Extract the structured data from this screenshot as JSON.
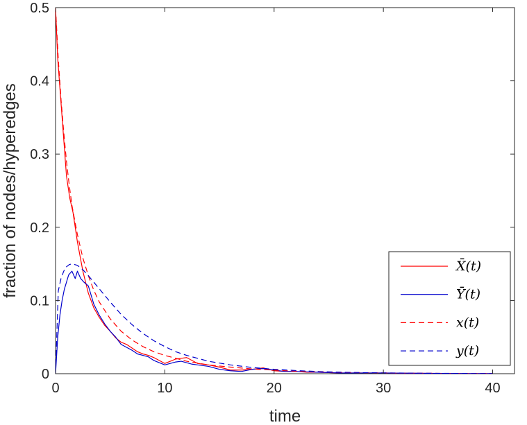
{
  "chart_data": {
    "type": "line",
    "xlabel": "time",
    "ylabel": "fraction of nodes/hyperedges",
    "xlim": [
      0,
      42
    ],
    "ylim": [
      0,
      0.5
    ],
    "xticks": [
      0,
      10,
      20,
      30,
      40
    ],
    "yticks": [
      0,
      0.1,
      0.2,
      0.3,
      0.4,
      0.5
    ],
    "xtick_labels": [
      "0",
      "10",
      "20",
      "30",
      "40"
    ],
    "ytick_labels": [
      "0",
      "0.1",
      "0.2",
      "0.3",
      "0.4",
      "0.5"
    ],
    "grid": false,
    "legend_position": "bottom-right",
    "series": [
      {
        "name": "X̄(t)",
        "color": "#ff0000",
        "style": "solid",
        "x": [
          0,
          0.2,
          0.5,
          0.8,
          1,
          1.3,
          1.6,
          2,
          2.5,
          3,
          3.5,
          4,
          4.5,
          5,
          5.5,
          6,
          6.5,
          7,
          7.5,
          8,
          8.5,
          9,
          9.5,
          10,
          10.5,
          11,
          11.5,
          12,
          13,
          14,
          15,
          16,
          17,
          18,
          19,
          20,
          21,
          22,
          23,
          24,
          26,
          28,
          30,
          34,
          38,
          40
        ],
        "y": [
          0.5,
          0.43,
          0.37,
          0.31,
          0.27,
          0.24,
          0.22,
          0.18,
          0.14,
          0.11,
          0.09,
          0.077,
          0.066,
          0.058,
          0.049,
          0.043,
          0.04,
          0.035,
          0.03,
          0.027,
          0.025,
          0.022,
          0.018,
          0.014,
          0.017,
          0.02,
          0.021,
          0.022,
          0.014,
          0.012,
          0.009,
          0.005,
          0.005,
          0.006,
          0.008,
          0.004,
          0.003,
          0.003,
          0.002,
          0.002,
          0.001,
          0.001,
          0.001,
          0.0005,
          0.0002,
          0.0001
        ]
      },
      {
        "name": "Ȳ(t)",
        "color": "#0000cc",
        "style": "solid",
        "x": [
          0,
          0.2,
          0.4,
          0.6,
          0.8,
          1,
          1.2,
          1.5,
          1.8,
          2,
          2.3,
          2.6,
          3,
          3.5,
          4,
          4.5,
          5,
          5.5,
          6,
          6.5,
          7,
          7.5,
          8,
          8.5,
          9,
          9.5,
          10,
          10.5,
          11,
          11.5,
          12,
          12.5,
          13,
          14,
          15,
          16,
          17,
          18,
          19,
          20,
          21,
          22,
          24,
          26,
          28,
          30,
          34,
          38,
          40
        ],
        "y": [
          0,
          0.05,
          0.08,
          0.1,
          0.115,
          0.125,
          0.135,
          0.14,
          0.13,
          0.14,
          0.13,
          0.125,
          0.12,
          0.095,
          0.08,
          0.068,
          0.058,
          0.05,
          0.04,
          0.036,
          0.032,
          0.027,
          0.025,
          0.023,
          0.018,
          0.015,
          0.012,
          0.014,
          0.016,
          0.017,
          0.015,
          0.013,
          0.012,
          0.01,
          0.006,
          0.004,
          0.003,
          0.006,
          0.007,
          0.005,
          0.003,
          0.003,
          0.002,
          0.001,
          0.001,
          0.001,
          0.0005,
          0.0002,
          0.0001
        ]
      },
      {
        "name": "x(t)",
        "color": "#ff0000",
        "style": "dashed",
        "x": [
          0,
          0.25,
          0.5,
          0.75,
          1,
          1.25,
          1.5,
          2,
          2.5,
          3,
          3.5,
          4,
          5,
          6,
          7,
          8,
          9,
          10,
          11,
          12,
          14,
          16,
          18,
          20,
          22,
          24,
          26,
          28,
          30,
          34,
          38,
          40
        ],
        "y": [
          0.5,
          0.43,
          0.375,
          0.33,
          0.29,
          0.258,
          0.23,
          0.19,
          0.158,
          0.134,
          0.114,
          0.098,
          0.075,
          0.058,
          0.046,
          0.037,
          0.03,
          0.025,
          0.021,
          0.017,
          0.012,
          0.009,
          0.0065,
          0.0048,
          0.0035,
          0.0026,
          0.0019,
          0.0014,
          0.001,
          0.0005,
          0.0003,
          0.0002
        ]
      },
      {
        "name": "y(t)",
        "color": "#0000cc",
        "style": "dashed",
        "x": [
          0,
          0.25,
          0.5,
          0.75,
          1,
          1.25,
          1.5,
          2,
          2.5,
          3,
          3.5,
          4,
          5,
          6,
          7,
          8,
          9,
          10,
          11,
          12,
          14,
          16,
          18,
          20,
          22,
          24,
          26,
          28,
          30,
          34,
          38,
          40
        ],
        "y": [
          0,
          0.113,
          0.13,
          0.14,
          0.146,
          0.149,
          0.15,
          0.148,
          0.142,
          0.134,
          0.125,
          0.116,
          0.098,
          0.081,
          0.067,
          0.055,
          0.045,
          0.037,
          0.03,
          0.025,
          0.017,
          0.012,
          0.0085,
          0.006,
          0.0043,
          0.003,
          0.0021,
          0.0015,
          0.0011,
          0.0006,
          0.0003,
          0.0002
        ]
      }
    ]
  }
}
